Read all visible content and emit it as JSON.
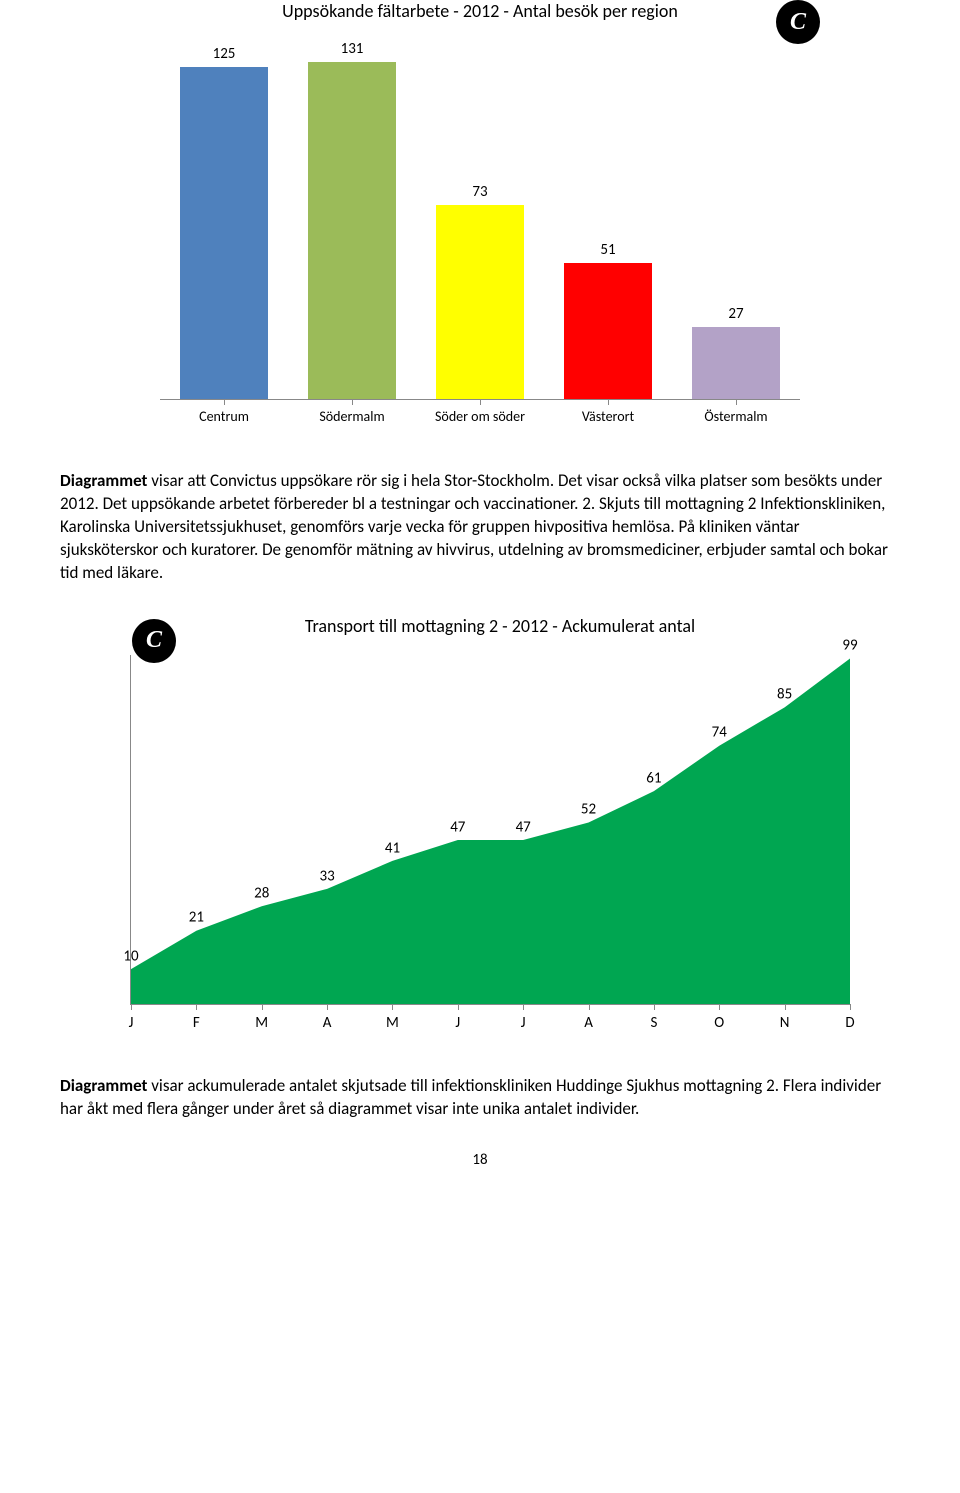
{
  "bar_chart": {
    "title": "Uppsökande fältarbete - 2012 - Antal besök per region",
    "title_fontsize": 18,
    "categories": [
      "Centrum",
      "Södermalm",
      "Söder om söder",
      "Västerort",
      "Östermalm"
    ],
    "values": [
      125,
      131,
      73,
      51,
      27
    ],
    "bar_colors": [
      "#4f81bd",
      "#9bbb59",
      "#ffff00",
      "#ff0000",
      "#b3a2c7"
    ],
    "label_fontsize": 14,
    "value_fontsize": 15,
    "ylim": [
      0,
      135
    ],
    "axis_color": "#888888",
    "background_color": "#ffffff",
    "bar_width": 0.68
  },
  "paragraph1": {
    "lead": "Diagrammet",
    "rest": " visar att Convictus uppsökare rör sig i hela Stor-Stockholm. Det visar också vilka platser som besökts under 2012. Det uppsökande arbetet förbereder bl a testningar och vaccinationer. 2. Skjuts till mottagning 2 Infektionskliniken, Karolinska Universitetssjukhuset, genomförs varje vecka för gruppen hivpositiva hemlösa. På kliniken väntar sjuksköterskor och kuratorer. De genomför mätning av hivvirus, utdelning av bromsmediciner, erbjuder samtal och bokar tid med läkare."
  },
  "area_chart": {
    "title": "Transport till mottagning 2 - 2012 - Ackumulerat antal",
    "title_fontsize": 18,
    "x_labels": [
      "J",
      "F",
      "M",
      "A",
      "M",
      "J",
      "J",
      "A",
      "S",
      "O",
      "N",
      "D"
    ],
    "values": [
      10,
      21,
      28,
      33,
      41,
      47,
      47,
      52,
      61,
      74,
      85,
      99
    ],
    "fill_color": "#00a651",
    "label_fontsize": 15,
    "ylim": [
      0,
      100
    ],
    "axis_color": "#888888",
    "background_color": "#ffffff"
  },
  "paragraph2": {
    "lead": "Diagrammet",
    "rest": " visar ackumulerade antalet skjutsade till infektionskliniken Huddinge Sjukhus mottagning 2. Flera individer har åkt med flera gånger under året så diagrammet visar inte unika antalet individer."
  },
  "page_number": "18",
  "logo_char": "C"
}
